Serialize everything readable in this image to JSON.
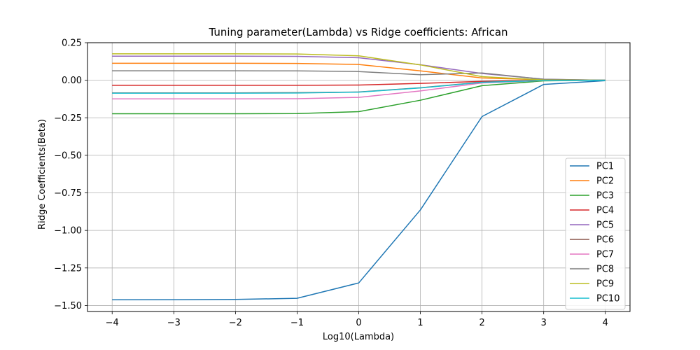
{
  "chart_data": {
    "type": "line",
    "title": "Tuning parameter(Lambda) vs Ridge coefficients: African",
    "xlabel": "Log10(Lambda)",
    "ylabel": "Ridge Coefficients(Beta)",
    "xlim": [
      -4.4,
      4.4
    ],
    "ylim": [
      -1.54,
      0.25
    ],
    "x": [
      -4,
      -3,
      -2,
      -1,
      0,
      1,
      2,
      3,
      4
    ],
    "xticks": [
      -4,
      -3,
      -2,
      -1,
      0,
      1,
      2,
      3,
      4
    ],
    "xtick_labels": [
      "−4",
      "−3",
      "−2",
      "−1",
      "0",
      "1",
      "2",
      "3",
      "4"
    ],
    "yticks": [
      0.25,
      0.0,
      -0.25,
      -0.5,
      -0.75,
      -1.0,
      -1.25,
      -1.5
    ],
    "ytick_labels": [
      "0.25",
      "0.00",
      "−0.25",
      "−0.50",
      "−0.75",
      "−1.00",
      "−1.25",
      "−1.50"
    ],
    "grid": true,
    "legend_position": "lower right",
    "series": [
      {
        "name": "PC1",
        "color": "#1f77b4",
        "values": [
          -1.462,
          -1.461,
          -1.46,
          -1.452,
          -1.35,
          -0.863,
          -0.242,
          -0.028,
          -0.003
        ]
      },
      {
        "name": "PC2",
        "color": "#ff7f0e",
        "values": [
          0.113,
          0.113,
          0.113,
          0.112,
          0.105,
          0.062,
          0.015,
          0.003,
          0.0
        ]
      },
      {
        "name": "PC3",
        "color": "#2ca02c",
        "values": [
          -0.223,
          -0.223,
          -0.223,
          -0.222,
          -0.209,
          -0.133,
          -0.036,
          -0.004,
          0.0
        ]
      },
      {
        "name": "PC4",
        "color": "#d62728",
        "values": [
          -0.034,
          -0.034,
          -0.034,
          -0.034,
          -0.032,
          -0.021,
          -0.008,
          -0.001,
          0.0
        ]
      },
      {
        "name": "PC5",
        "color": "#9467bd",
        "values": [
          0.16,
          0.16,
          0.16,
          0.159,
          0.15,
          0.103,
          0.045,
          0.007,
          0.0
        ]
      },
      {
        "name": "PC6",
        "color": "#8c564b",
        "values": [
          -0.084,
          -0.084,
          -0.084,
          -0.083,
          -0.078,
          -0.05,
          -0.013,
          -0.001,
          0.0
        ]
      },
      {
        "name": "PC7",
        "color": "#e377c2",
        "values": [
          -0.124,
          -0.124,
          -0.124,
          -0.123,
          -0.114,
          -0.071,
          -0.018,
          -0.002,
          0.0
        ]
      },
      {
        "name": "PC8",
        "color": "#7f7f7f",
        "values": [
          0.063,
          0.063,
          0.063,
          0.062,
          0.058,
          0.037,
          0.048,
          0.006,
          0.0
        ]
      },
      {
        "name": "PC9",
        "color": "#bcbd22",
        "values": [
          0.176,
          0.176,
          0.176,
          0.175,
          0.163,
          0.102,
          0.024,
          0.002,
          0.0
        ]
      },
      {
        "name": "PC10",
        "color": "#17becf",
        "values": [
          -0.086,
          -0.086,
          -0.086,
          -0.085,
          -0.079,
          -0.051,
          -0.014,
          -0.002,
          0.0
        ]
      }
    ]
  }
}
